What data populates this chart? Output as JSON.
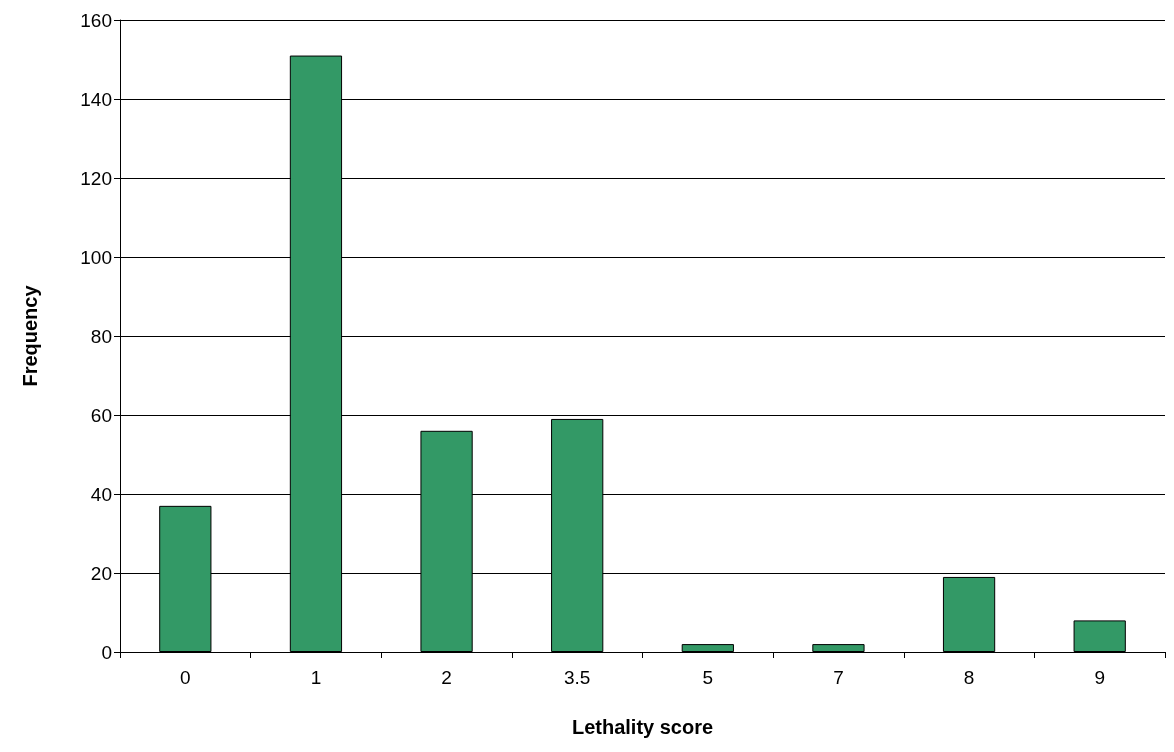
{
  "chart_data": {
    "type": "bar",
    "xlabel": "Lethality score",
    "ylabel": "Frequency",
    "categories": [
      "0",
      "1",
      "2",
      "3.5",
      "5",
      "7",
      "8",
      "9"
    ],
    "values": [
      37,
      151,
      56,
      59,
      2,
      2,
      19,
      8
    ],
    "color": "#339966",
    "ylim": [
      0,
      160
    ],
    "yticks": [
      0,
      20,
      40,
      60,
      80,
      100,
      120,
      140,
      160
    ],
    "grid": "y"
  }
}
